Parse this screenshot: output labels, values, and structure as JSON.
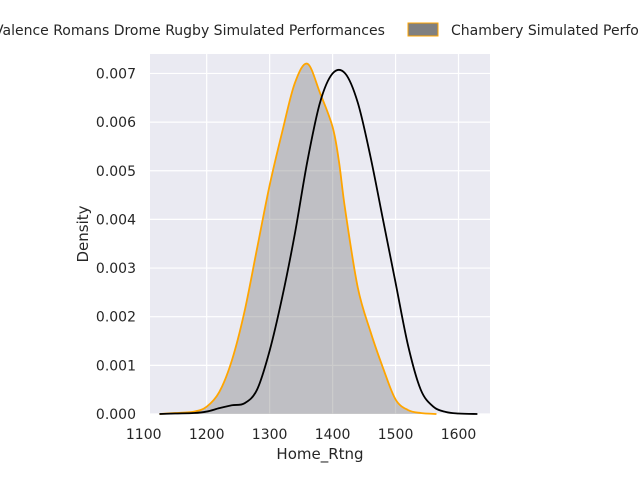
{
  "chart_data": {
    "type": "area",
    "title": "",
    "xlabel": "Home_Rtng",
    "ylabel": "Density",
    "xlim": [
      1110,
      1650
    ],
    "ylim": [
      0,
      0.0074
    ],
    "grid": true,
    "legend_position": "top",
    "x_ticks": [
      "1100",
      "1200",
      "1300",
      "1400",
      "1500",
      "1600"
    ],
    "y_ticks": [
      "0.000",
      "0.001",
      "0.002",
      "0.003",
      "0.004",
      "0.005",
      "0.006",
      "0.007"
    ],
    "series": [
      {
        "name": "Valence Romans Drome Rugby Simulated Performances",
        "style": "line",
        "color": "#000000",
        "points": [
          [
            1125,
            0
          ],
          [
            1150,
            1e-05
          ],
          [
            1180,
            2e-05
          ],
          [
            1200,
            5e-05
          ],
          [
            1220,
            0.00012
          ],
          [
            1240,
            0.00018
          ],
          [
            1260,
            0.00022
          ],
          [
            1280,
            0.0005
          ],
          [
            1300,
            0.0013
          ],
          [
            1320,
            0.0024
          ],
          [
            1340,
            0.0037
          ],
          [
            1360,
            0.0052
          ],
          [
            1380,
            0.0064
          ],
          [
            1400,
            0.007
          ],
          [
            1420,
            0.007
          ],
          [
            1440,
            0.0064
          ],
          [
            1460,
            0.0053
          ],
          [
            1480,
            0.004
          ],
          [
            1500,
            0.0027
          ],
          [
            1520,
            0.0014
          ],
          [
            1540,
            0.0005
          ],
          [
            1560,
            0.00015
          ],
          [
            1580,
            4e-05
          ],
          [
            1600,
            1e-05
          ],
          [
            1630,
            0
          ]
        ]
      },
      {
        "name": "Chambery Simulated Performances",
        "style": "filled",
        "color": "#808080",
        "edge_color": "#FFA500",
        "points": [
          [
            1125,
            0
          ],
          [
            1150,
            2e-05
          ],
          [
            1180,
            5e-05
          ],
          [
            1200,
            0.00015
          ],
          [
            1220,
            0.00045
          ],
          [
            1240,
            0.0011
          ],
          [
            1260,
            0.0021
          ],
          [
            1280,
            0.0034
          ],
          [
            1300,
            0.0047
          ],
          [
            1320,
            0.0058
          ],
          [
            1340,
            0.0068
          ],
          [
            1360,
            0.0072
          ],
          [
            1380,
            0.0066
          ],
          [
            1400,
            0.0059
          ],
          [
            1410,
            0.0052
          ],
          [
            1420,
            0.0042
          ],
          [
            1440,
            0.0026
          ],
          [
            1460,
            0.0017
          ],
          [
            1480,
            0.00095
          ],
          [
            1500,
            0.0003
          ],
          [
            1520,
            8e-05
          ],
          [
            1540,
            2e-05
          ],
          [
            1565,
            0
          ]
        ]
      }
    ]
  },
  "legend": {
    "series1": "Valence Romans Drome Rugby Simulated Performances",
    "series2": "Chambery Simulated Performances"
  }
}
